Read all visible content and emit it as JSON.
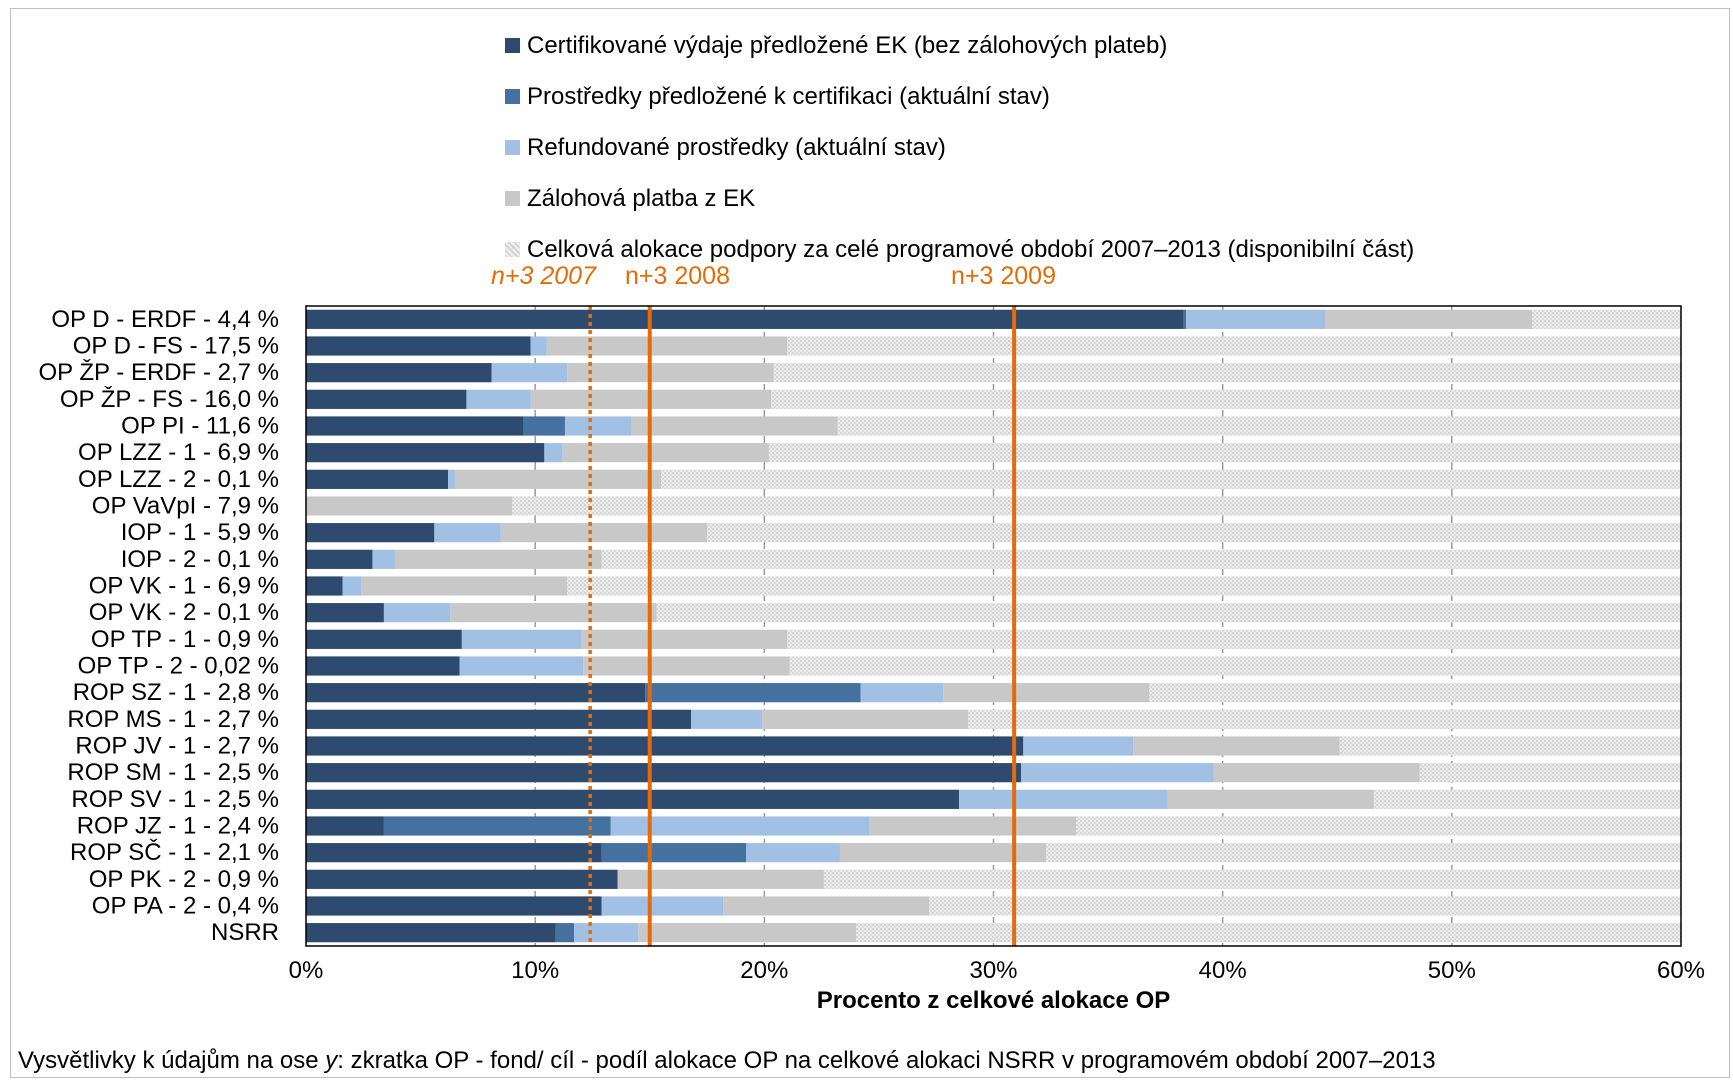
{
  "colors": {
    "certified": "#2e4a6f",
    "submitted": "#44719f",
    "refunded": "#a2c0e4",
    "advance": "#c8c8c8",
    "allocation": "#e6e6e6",
    "reference_line": "#e36c09"
  },
  "legend": [
    {
      "label": "Certifikované výdaje předložené EK (bez zálohových plateb)",
      "color": "#2e4a6f"
    },
    {
      "label": "Prostředky předložené k certifikaci (aktuální stav)",
      "color": "#44719f"
    },
    {
      "label": "Refundované prostředky (aktuální stav)",
      "color": "#a2c0e4"
    },
    {
      "label": "Zálohová platba z EK",
      "color": "#c8c8c8"
    },
    {
      "label": "Celková alokace podpory za celé programové období 2007–2013 (disponibilní část)",
      "color": "#e6e6e6"
    }
  ],
  "reference_lines": [
    {
      "label": "n+3 2007",
      "value": 12.4,
      "style": "dotted"
    },
    {
      "label": "n+3 2008",
      "value": 15.0,
      "style": "solid"
    },
    {
      "label": "n+3 2009",
      "value": 30.9,
      "style": "solid"
    }
  ],
  "chart_data": {
    "type": "bar",
    "orientation": "horizontal",
    "stacked": true,
    "title": "",
    "xlabel": "Procento z celkové alokace OP",
    "xlim": [
      0,
      60
    ],
    "xticks": [
      "0%",
      "10%",
      "20%",
      "30%",
      "40%",
      "50%",
      "60%"
    ],
    "grid": true,
    "legend_position": "top",
    "categories": [
      "OP D - ERDF - 4,4 %",
      "OP D - FS - 17,5 %",
      "OP ŽP - ERDF - 2,7 %",
      "OP ŽP - FS - 16,0 %",
      "OP PI - 11,6 %",
      "OP LZZ - 1 - 6,9 %",
      "OP LZZ - 2 - 0,1 %",
      "OP VaVpI - 7,9 %",
      "IOP - 1 - 5,9 %",
      "IOP - 2 - 0,1 %",
      "OP VK - 1 - 6,9 %",
      "OP VK - 2 - 0,1 %",
      "OP TP - 1 - 0,9 %",
      "OP TP - 2 - 0,02 %",
      "ROP SZ - 1 - 2,8 %",
      "ROP MS - 1 - 2,7 %",
      "ROP JV - 1 - 2,7 %",
      "ROP SM - 1 - 2,5 %",
      "ROP SV - 1 - 2,5 %",
      "ROP JZ - 1 - 2,4 %",
      "ROP SČ - 1 - 2,1 %",
      "OP PK - 2 - 0,9 %",
      "OP PA - 2 - 0,4 %",
      "NSRR"
    ],
    "series": [
      {
        "name": "Certifikované výdaje předložené EK (bez zálohových plateb)",
        "values": [
          38.3,
          9.8,
          8.1,
          7.0,
          9.5,
          10.4,
          6.2,
          0.0,
          5.6,
          2.9,
          1.6,
          3.4,
          6.8,
          6.7,
          14.8,
          16.8,
          31.3,
          31.2,
          28.5,
          3.4,
          12.9,
          13.6,
          12.9,
          10.9
        ]
      },
      {
        "name": "Prostředky předložené k certifikaci (aktuální stav)",
        "values": [
          0.1,
          0.0,
          0.0,
          0.0,
          1.8,
          0.0,
          0.0,
          0.0,
          0.0,
          0.0,
          0.0,
          0.0,
          0.0,
          0.0,
          9.4,
          0.0,
          0.0,
          0.0,
          0.0,
          9.9,
          6.3,
          0.0,
          0.0,
          0.8
        ]
      },
      {
        "name": "Refundované prostředky (aktuální stav)",
        "values": [
          6.1,
          0.7,
          3.3,
          2.8,
          2.9,
          0.8,
          0.3,
          0.0,
          2.9,
          1.0,
          0.8,
          2.9,
          5.2,
          5.4,
          3.6,
          3.1,
          4.8,
          8.4,
          9.1,
          11.3,
          4.1,
          0.0,
          5.3,
          2.8
        ]
      },
      {
        "name": "Zálohová platba z EK",
        "values": [
          9.0,
          10.5,
          9.0,
          10.5,
          9.0,
          9.0,
          9.0,
          9.0,
          9.0,
          9.0,
          9.0,
          9.0,
          9.0,
          9.0,
          9.0,
          9.0,
          9.0,
          9.0,
          9.0,
          9.0,
          9.0,
          9.0,
          9.0,
          9.5
        ]
      },
      {
        "name": "Celková alokace podpory za celé programové období 2007–2013 (disponibilní část)",
        "values": [
          6.6,
          39.0,
          39.6,
          39.7,
          36.8,
          39.8,
          44.5,
          51.0,
          42.5,
          47.1,
          48.6,
          44.7,
          39.0,
          38.9,
          23.2,
          31.1,
          14.9,
          11.4,
          13.4,
          26.4,
          27.7,
          37.4,
          32.8,
          36.0
        ]
      }
    ]
  },
  "y_axis_note": {
    "prefix": "Vysvětlivky k údajům na ose ",
    "italic": "y",
    "suffix": ": zkratka OP - fond/ cíl - podíl alokace OP na celkové alokaci NSRR v programovém období 2007–2013"
  }
}
